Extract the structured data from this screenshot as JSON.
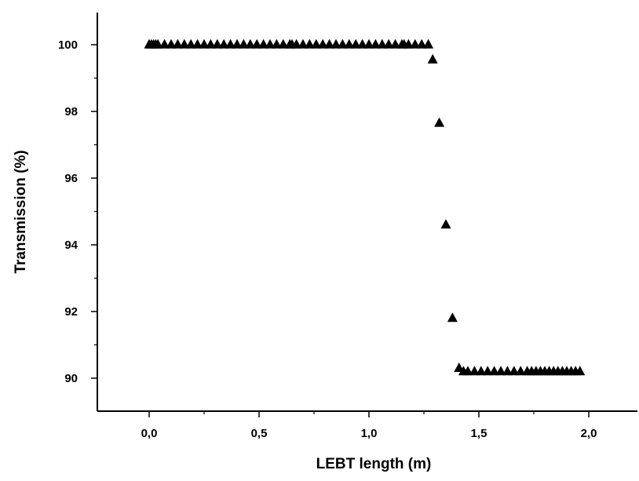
{
  "chart_data": {
    "type": "scatter",
    "marker": "filled-triangle",
    "marker_color": "#000000",
    "xlabel": "LEBT length (m)",
    "ylabel": "Transmission (%)",
    "xlim": [
      -0.24,
      2.24
    ],
    "ylim": [
      89.1,
      101.0
    ],
    "xticks": [
      0.0,
      0.5,
      1.0,
      1.5,
      2.0
    ],
    "xtick_labels": [
      "0,0",
      "0,5",
      "1,0",
      "1,5",
      "2,0"
    ],
    "yticks": [
      90,
      92,
      94,
      96,
      98,
      100
    ],
    "ytick_labels": [
      "90",
      "92",
      "94",
      "96",
      "98",
      "100"
    ],
    "grid": false,
    "legend": "none",
    "series": [
      {
        "x": [
          0.0,
          0.01,
          0.02,
          0.03,
          0.04,
          0.07,
          0.1,
          0.13,
          0.16,
          0.19,
          0.22,
          0.25,
          0.28,
          0.31,
          0.34,
          0.37,
          0.4,
          0.43,
          0.46,
          0.49,
          0.52,
          0.55,
          0.58,
          0.61,
          0.64,
          0.65,
          0.67,
          0.7,
          0.73,
          0.76,
          0.79,
          0.82,
          0.85,
          0.88,
          0.91,
          0.94,
          0.97,
          1.0,
          1.03,
          1.06,
          1.09,
          1.12,
          1.15,
          1.16,
          1.18,
          1.21,
          1.24,
          1.27,
          1.29,
          1.32,
          1.35,
          1.38,
          1.41,
          1.43,
          1.45,
          1.48,
          1.51,
          1.54,
          1.57,
          1.6,
          1.63,
          1.66,
          1.69,
          1.72,
          1.74,
          1.76,
          1.78,
          1.8,
          1.82,
          1.84,
          1.86,
          1.88,
          1.9,
          1.92,
          1.94,
          1.96
        ],
        "y": [
          100.0,
          100.0,
          100.0,
          100.0,
          100.0,
          100.0,
          100.0,
          100.0,
          100.0,
          100.0,
          100.0,
          100.0,
          100.0,
          100.0,
          100.0,
          100.0,
          100.0,
          100.0,
          100.0,
          100.0,
          100.0,
          100.0,
          100.0,
          100.0,
          100.0,
          100.0,
          100.0,
          100.0,
          100.0,
          100.0,
          100.0,
          100.0,
          100.0,
          100.0,
          100.0,
          100.0,
          100.0,
          100.0,
          100.0,
          100.0,
          100.0,
          100.0,
          100.0,
          100.0,
          100.0,
          100.0,
          100.0,
          100.0,
          99.55,
          97.65,
          94.6,
          91.8,
          90.3,
          90.2,
          90.2,
          90.2,
          90.2,
          90.2,
          90.2,
          90.2,
          90.2,
          90.2,
          90.2,
          90.2,
          90.2,
          90.2,
          90.2,
          90.2,
          90.2,
          90.2,
          90.2,
          90.2,
          90.2,
          90.2,
          90.2,
          90.2
        ]
      }
    ]
  }
}
